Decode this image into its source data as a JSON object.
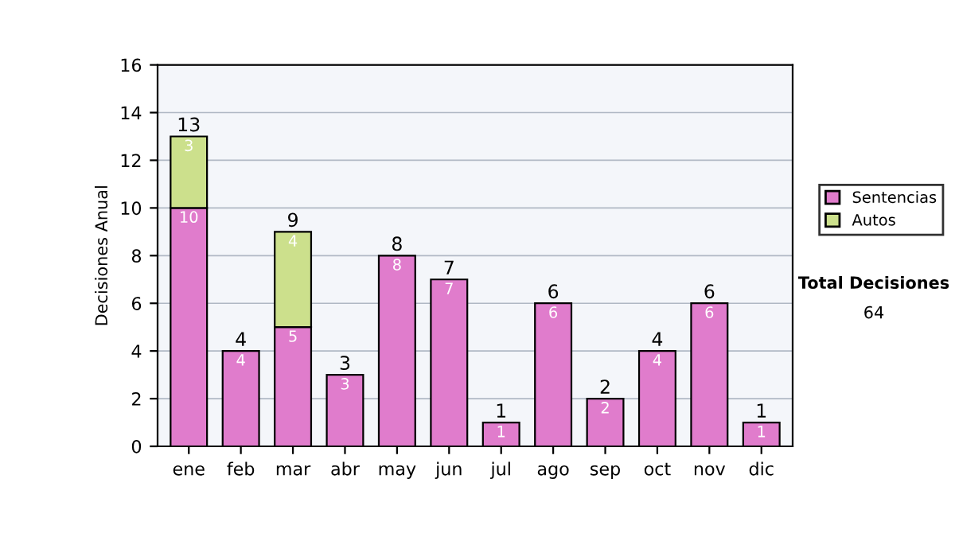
{
  "chart_data": {
    "type": "bar",
    "ylabel": "Decisiones Anual",
    "categories": [
      "ene",
      "feb",
      "mar",
      "abr",
      "may",
      "jun",
      "jul",
      "ago",
      "sep",
      "oct",
      "nov",
      "dic"
    ],
    "series": [
      {
        "name": "Sentencias",
        "color": "#e07ccc",
        "values": [
          10,
          4,
          5,
          3,
          8,
          7,
          1,
          6,
          2,
          4,
          6,
          1
        ],
        "value_labels": [
          "10",
          "4",
          "5",
          "3",
          "8",
          "7",
          "1",
          "6",
          "2",
          "4",
          "6",
          "1"
        ]
      },
      {
        "name": "Autos",
        "color": "#cce08c",
        "values": [
          3,
          null,
          4,
          null,
          null,
          null,
          null,
          null,
          null,
          null,
          null,
          null
        ],
        "value_labels": [
          "3",
          null,
          "4",
          null,
          null,
          null,
          null,
          null,
          null,
          null,
          null,
          null
        ]
      }
    ],
    "stacked": true,
    "totals": [
      "13",
      "4",
      "9",
      "3",
      "8",
      "7",
      "1",
      "6",
      "2",
      "4",
      "6",
      "1"
    ],
    "ylim": [
      0,
      16
    ],
    "yticks": [
      0,
      2,
      4,
      6,
      8,
      10,
      12,
      14,
      16
    ],
    "grid": "y",
    "legend": "right",
    "annotations": [
      "Total Decisiones",
      "64"
    ]
  }
}
